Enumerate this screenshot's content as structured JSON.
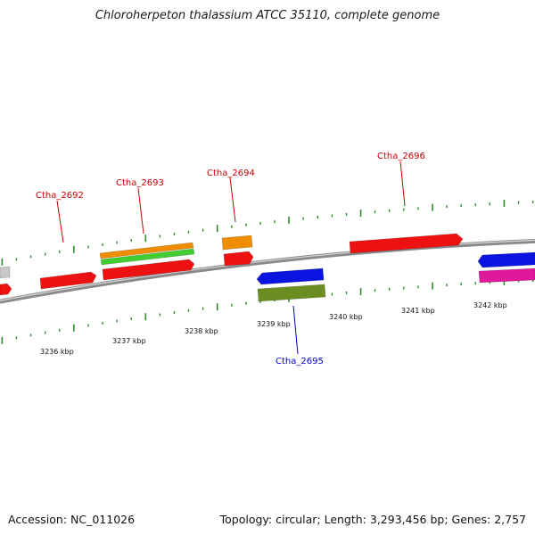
{
  "title": "Chloroherpeton thalassium ATCC 35110, complete genome",
  "footer": {
    "accession": "Accession: NC_011026",
    "summary": "Topology: circular; Length: 3,293,456 bp; Genes: 2,757"
  },
  "colors": {
    "backbone": "#8a8a8a",
    "ticks": "#2e8b2e",
    "label_forward": "#cc0000",
    "label_reverse": "#0000cc",
    "red": "#ee1111",
    "orange": "#f08c00",
    "green": "#44cc33",
    "blue": "#0a14e0",
    "olive": "#6b8e23",
    "magenta": "#e0189a",
    "grey": "#c8c8c8"
  },
  "scale_labels": [
    "3236 kbp",
    "3237 kbp",
    "3238 kbp",
    "3239 kbp",
    "3240 kbp",
    "3241 kbp",
    "3242 kbp"
  ],
  "gene_labels": [
    {
      "name": "Ctha_2692",
      "strand": "forward"
    },
    {
      "name": "Ctha_2693",
      "strand": "forward"
    },
    {
      "name": "Ctha_2694",
      "strand": "forward"
    },
    {
      "name": "Ctha_2696",
      "strand": "forward"
    },
    {
      "name": "Ctha_2695",
      "strand": "reverse"
    }
  ]
}
